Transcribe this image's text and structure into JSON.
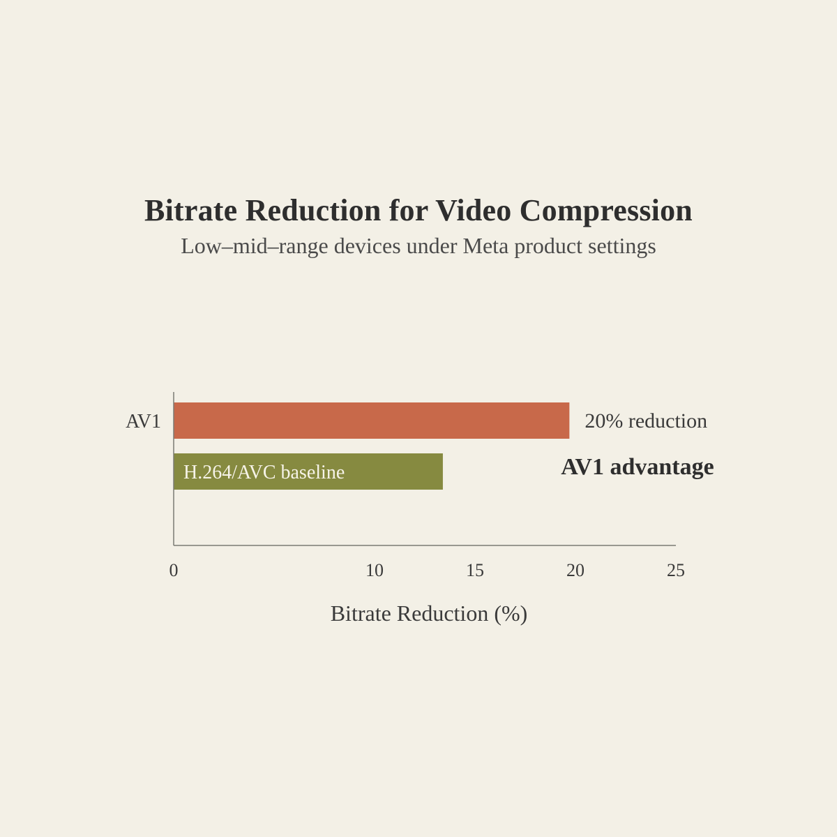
{
  "chart_data": {
    "type": "bar",
    "orientation": "horizontal",
    "title": "Bitrate Reduction for Video Compression",
    "subtitle": "Low–mid–range devices under Meta product settings",
    "xlabel": "Bitrate Reduction (%)",
    "ylabel": "",
    "xlim": [
      0,
      25
    ],
    "xticks": [
      0,
      10,
      15,
      20,
      25
    ],
    "categories": [
      "AV1",
      ""
    ],
    "values": [
      19.7,
      13.4
    ],
    "bar_labels": [
      "",
      "H.264/AVC baseline"
    ],
    "value_labels": [
      "20% reduction",
      ""
    ],
    "colors": [
      "#c8694a",
      "#868a40"
    ],
    "annotation": "AV1 advantage",
    "grid": false
  }
}
